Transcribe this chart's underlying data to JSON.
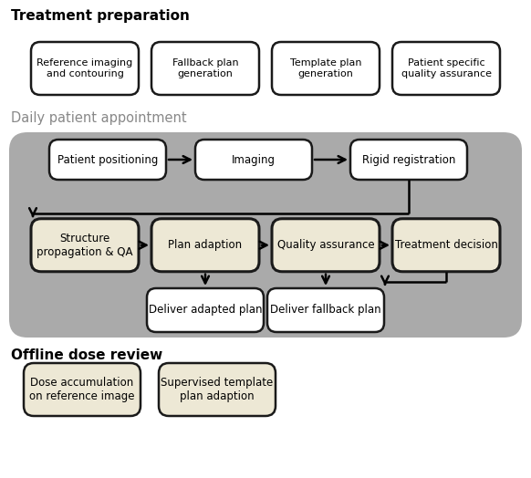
{
  "title_treatment": "Treatment preparation",
  "title_daily": "Daily patient appointment",
  "title_offline": "Offline dose review",
  "bg_color": "#ffffff",
  "gray_bg": "#9e9e9e",
  "white_box_color": "#ffffff",
  "tan_box_color": "#ede8d5",
  "box_edge_color": "#1a1a1a",
  "text_color": "#000000",
  "gray_text": "#888888",
  "treatment_boxes": [
    "Reference imaging\nand contouring",
    "Fallback plan\ngeneration",
    "Template plan\ngeneration",
    "Patient specific\nquality assurance"
  ],
  "daily_top_boxes": [
    "Patient positioning",
    "Imaging",
    "Rigid registration"
  ],
  "daily_main_boxes": [
    "Structure\npropagation & QA",
    "Plan adaption",
    "Quality assurance",
    "Treatment decision"
  ],
  "daily_bottom_boxes": [
    "Deliver adapted plan",
    "Deliver fallback plan"
  ],
  "offline_boxes": [
    "Dose accumulation\non reference image",
    "Supervised template\nplan adaption"
  ],
  "figw": 5.82,
  "figh": 5.24,
  "dpi": 100
}
